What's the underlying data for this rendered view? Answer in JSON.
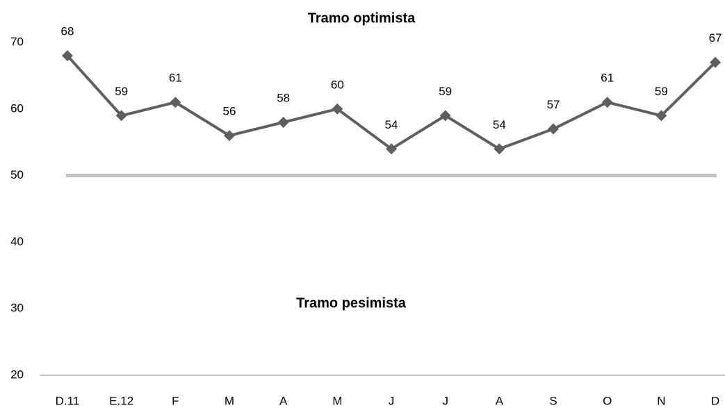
{
  "chart_data": {
    "type": "line",
    "annotations": [
      "Tramo optimista",
      "Tramo pesimista"
    ],
    "categories": [
      "D.11",
      "E.12",
      "F",
      "M",
      "A",
      "M",
      "J",
      "J",
      "A",
      "S",
      "O",
      "N",
      "D"
    ],
    "series": [
      {
        "color": "#5f5f5f",
        "values": [
          68,
          59,
          61,
          56,
          58,
          60,
          54,
          59,
          54,
          57,
          61,
          59,
          67
        ]
      }
    ],
    "reference_line": 50,
    "reference_color": "#bfbfbf",
    "ylim": [
      20,
      70
    ],
    "yticks": [
      20,
      30,
      40,
      50,
      60,
      70
    ],
    "grid": false
  }
}
